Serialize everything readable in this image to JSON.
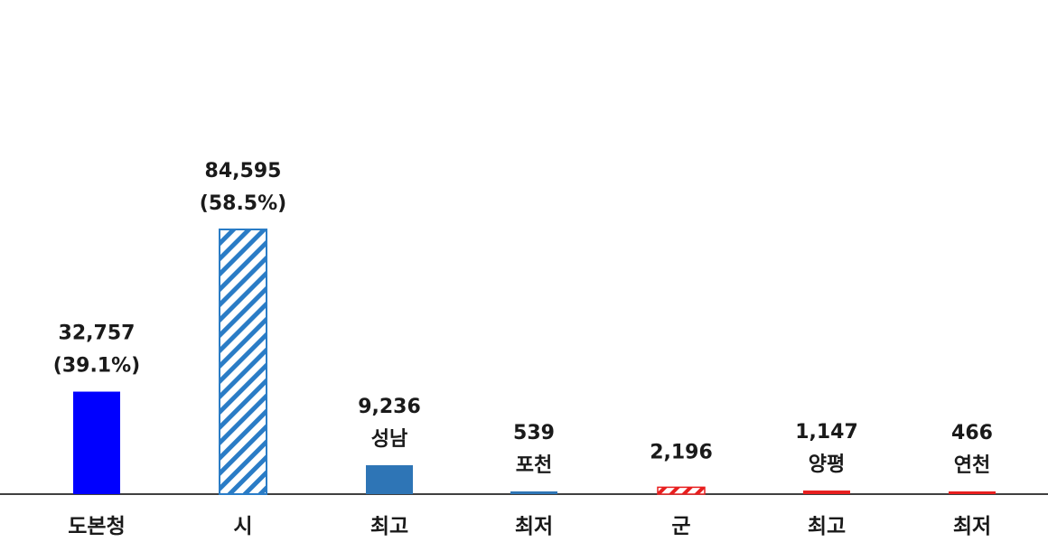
{
  "chart_data": {
    "type": "bar",
    "title": "",
    "xlabel": "",
    "ylabel": "",
    "ylim": [
      0,
      92000
    ],
    "grid": false,
    "legend": "none",
    "categories": [
      "도본청",
      "시",
      "최고",
      "최저",
      "군",
      "최고",
      "최저"
    ],
    "values": [
      32757,
      84595,
      9236,
      539,
      2196,
      1147,
      466
    ],
    "value_labels": [
      "32,757",
      "84,595",
      "9,236",
      "539",
      "2,196",
      "1,147",
      "466"
    ],
    "sub_labels": [
      "(39.1%)",
      "(58.5%)",
      "성남",
      "포천",
      "",
      "양평",
      "연천"
    ],
    "colors": {
      "bar_blue": "#0000ff",
      "bar_hatch": "#2a7cc6",
      "bar_steel": "#2e75b6",
      "bar_red": "#e81f1f",
      "axis": "#000000"
    },
    "bar_styles": [
      "solid-blue",
      "hatch-blue",
      "solid-steel",
      "solid-steel",
      "hatch-red",
      "solid-red",
      "solid-red"
    ]
  }
}
